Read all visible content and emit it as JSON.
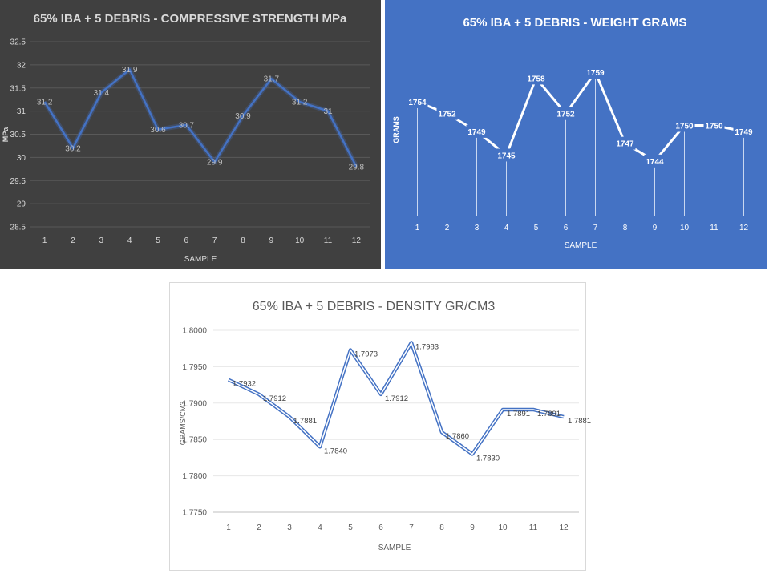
{
  "chart_data": [
    {
      "id": "strength",
      "type": "line",
      "title": "65% IBA + 5 DEBRIS - COMPRESSIVE STRENGTH MPa",
      "xlabel": "SAMPLE",
      "ylabel": "MPa",
      "categories": [
        "1",
        "2",
        "3",
        "4",
        "5",
        "6",
        "7",
        "8",
        "9",
        "10",
        "11",
        "12"
      ],
      "series": [
        {
          "values": [
            31.2,
            30.2,
            31.4,
            31.9,
            30.6,
            30.7,
            29.9,
            30.9,
            31.7,
            31.2,
            31.0,
            29.8
          ]
        }
      ],
      "data_labels": [
        "31.2",
        "30.2",
        "31.4",
        "31.9",
        "30.6",
        "30.7",
        "29.9",
        "30.9",
        "31.7",
        "31.2",
        "31",
        "29.8"
      ],
      "ylim": [
        28.5,
        32.5
      ],
      "yticks": [
        "28.5",
        "29",
        "29.5",
        "30",
        "30.5",
        "31",
        "31.5",
        "32",
        "32.5"
      ],
      "grid": true,
      "colors": {
        "background": "#404040",
        "line": "#4472c4",
        "text": "#d9d9d9",
        "grid": "#595959"
      }
    },
    {
      "id": "weight",
      "type": "line",
      "title": "65% IBA + 5 DEBRIS - WEIGHT GRAMS",
      "xlabel": "SAMPLE",
      "ylabel": "GRAMS",
      "categories": [
        "1",
        "2",
        "3",
        "4",
        "5",
        "6",
        "7",
        "8",
        "9",
        "10",
        "11",
        "12"
      ],
      "series": [
        {
          "values": [
            1754,
            1752,
            1749,
            1745,
            1758,
            1752,
            1759,
            1747,
            1744,
            1750,
            1750,
            1749
          ]
        }
      ],
      "data_labels": [
        "1754",
        "1752",
        "1749",
        "1745",
        "1758",
        "1752",
        "1759",
        "1747",
        "1744",
        "1750",
        "1750",
        "1749"
      ],
      "grid": false,
      "drop_lines": true,
      "colors": {
        "background": "#4472c4",
        "line": "#ffffff",
        "text": "#ffffff"
      }
    },
    {
      "id": "density",
      "type": "line",
      "title": "65% IBA + 5 DEBRIS - DENSITY GR/CM3",
      "xlabel": "SAMPLE",
      "ylabel": "GRAMS/CM3",
      "categories": [
        "1",
        "2",
        "3",
        "4",
        "5",
        "6",
        "7",
        "8",
        "9",
        "10",
        "11",
        "12"
      ],
      "series": [
        {
          "values": [
            1.7932,
            1.7912,
            1.7881,
            1.784,
            1.7973,
            1.7912,
            1.7983,
            1.786,
            1.783,
            1.7891,
            1.7891,
            1.7881
          ]
        }
      ],
      "data_labels": [
        "1.7932",
        "1.7912",
        "1.7881",
        "1.7840",
        "1.7973",
        "1.7912",
        "1.7983",
        "1.7860",
        "1.7830",
        "1.7891",
        "1.7891",
        "1.7881"
      ],
      "ylim": [
        1.775,
        1.8
      ],
      "yticks": [
        "1.7750",
        "1.7800",
        "1.7850",
        "1.7900",
        "1.7950",
        "1.8000"
      ],
      "grid": true,
      "colors": {
        "background": "#ffffff",
        "line": "#4472c4",
        "text": "#595959",
        "grid": "#e7e7e7"
      }
    }
  ]
}
